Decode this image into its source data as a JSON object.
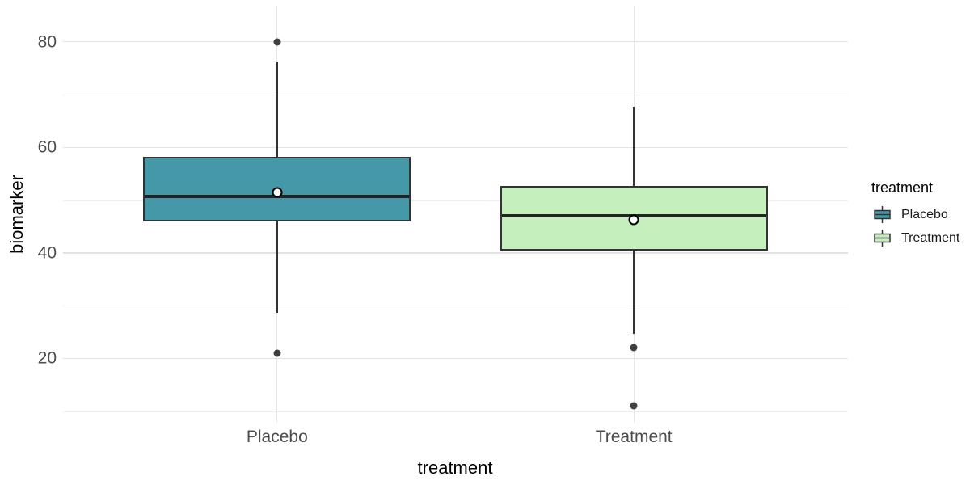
{
  "chart_data": {
    "type": "boxplot",
    "title": "",
    "xlabel": "treatment",
    "ylabel": "biomarker",
    "categories": [
      "Placebo",
      "Treatment"
    ],
    "y_major_ticks": [
      20,
      40,
      60,
      80
    ],
    "y_minor_ticks": [
      10,
      30,
      50,
      70
    ],
    "ylim": [
      7.8,
      86.7
    ],
    "grid": "on",
    "legend": {
      "title": "treatment",
      "position": "right",
      "entries": [
        {
          "label": "Placebo",
          "fill": "#4498a8"
        },
        {
          "label": "Treatment",
          "fill": "#c5f0be"
        }
      ]
    },
    "series": [
      {
        "name": "Placebo",
        "fill": "#4498a8",
        "whisker_low": 28.7,
        "q1": 45.9,
        "median": 50.7,
        "q3": 58.2,
        "whisker_high": 76.2,
        "mean": 51.5,
        "outliers": [
          80,
          21
        ]
      },
      {
        "name": "Treatment",
        "fill": "#c5f0be",
        "whisker_low": 24.7,
        "q1": 40.5,
        "median": 47.0,
        "q3": 52.7,
        "whisker_high": 67.7,
        "mean": 46.2,
        "outliers": [
          22,
          11
        ]
      }
    ]
  },
  "colors": {
    "box_border": "#333333",
    "median_line": "#242424",
    "whisker": "#333333",
    "outlier": "#404040",
    "mean_fill": "#ffffff",
    "mean_stroke": "#000000",
    "grid_major": "#e3e3e3",
    "grid_minor": "#efefef",
    "grid_vertical": "#e7e7e7",
    "tick_label": "#4d4d4d",
    "axis_title": "#000000",
    "background": "#ffffff"
  }
}
